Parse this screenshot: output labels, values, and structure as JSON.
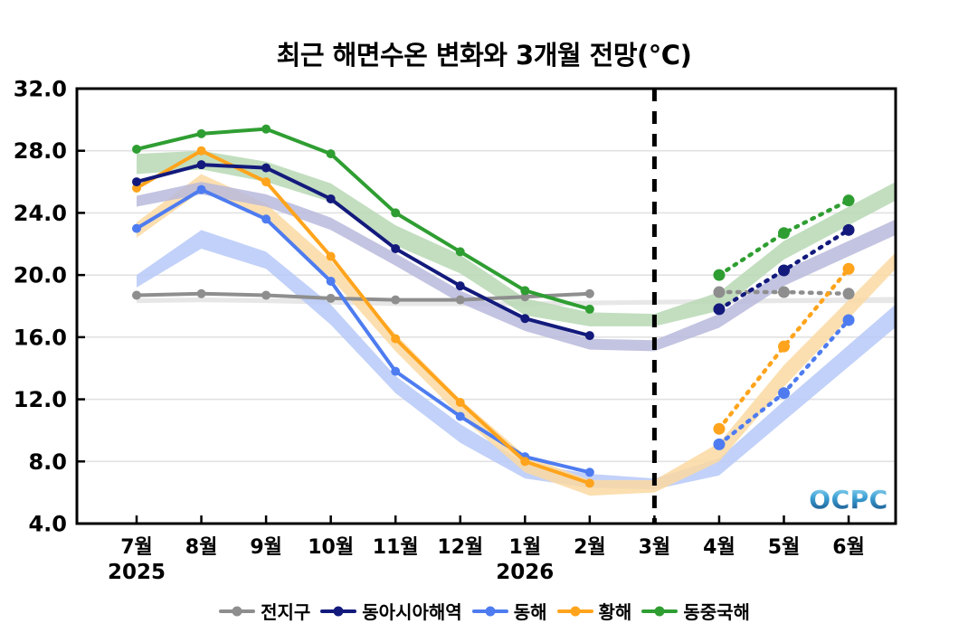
{
  "title": "최근 해면수온 변화와 3개월 전망(°C)",
  "logo_text": "OCPC",
  "chart_data": {
    "type": "line",
    "x_labels": [
      "7월",
      "8월",
      "9월",
      "10월",
      "11월",
      "12월",
      "1월",
      "2월",
      "3월",
      "4월",
      "5월",
      "6월"
    ],
    "year_labels": [
      {
        "label": "2025",
        "month_index": 0
      },
      {
        "label": "2026",
        "month_index": 6
      }
    ],
    "ylim": [
      4.0,
      32.0
    ],
    "yticks": [
      "4.0",
      "8.0",
      "12.0",
      "16.0",
      "20.0",
      "24.0",
      "28.0",
      "32.0"
    ],
    "ytick_values": [
      4,
      8,
      12,
      16,
      20,
      24,
      28,
      32
    ],
    "observed_months": [
      "7월",
      "8월",
      "9월",
      "10월",
      "11월",
      "12월",
      "1월",
      "2월"
    ],
    "forecast_months": [
      "4월",
      "5월",
      "6월"
    ],
    "forecast_divider_month": "3월",
    "forecast_divider_index": 8,
    "grid": "horizontal-only",
    "legend_position": "bottom-center",
    "series": [
      {
        "name": "전지구",
        "color": "#8e8e8e",
        "band_color": "#e3e3e3",
        "observed": [
          18.7,
          18.8,
          18.7,
          18.5,
          18.4,
          18.4,
          18.6,
          18.8
        ],
        "forecast": [
          18.9,
          18.9,
          18.8
        ],
        "band": [
          [
            18.2,
            18.5
          ],
          [
            18.25,
            18.55
          ],
          [
            18.2,
            18.5
          ],
          [
            18.1,
            18.45
          ],
          [
            18.0,
            18.35
          ],
          [
            18.0,
            18.3
          ],
          [
            18.0,
            18.3
          ],
          [
            18.05,
            18.35
          ],
          [
            18.1,
            18.4
          ],
          [
            18.15,
            18.45
          ],
          [
            18.2,
            18.5
          ],
          [
            18.2,
            18.55
          ]
        ]
      },
      {
        "name": "동해",
        "color": "#4e7cf0",
        "band_color": "#b7c9f8",
        "observed": [
          23.0,
          25.5,
          23.6,
          19.6,
          13.8,
          10.9,
          8.3,
          7.3
        ],
        "forecast": [
          9.1,
          12.4,
          17.1
        ],
        "band": [
          [
            19.2,
            20.0
          ],
          [
            21.7,
            22.9
          ],
          [
            20.4,
            21.5
          ],
          [
            16.8,
            18.1
          ],
          [
            12.4,
            13.5
          ],
          [
            9.2,
            10.4
          ],
          [
            6.9,
            7.9
          ],
          [
            6.3,
            7.2
          ],
          [
            6.2,
            6.9
          ],
          [
            7.1,
            8.2
          ],
          [
            10.6,
            11.9
          ],
          [
            14.1,
            15.5
          ]
        ]
      },
      {
        "name": "황해",
        "color": "#ffa41c",
        "band_color": "#fcd9a2",
        "observed": [
          25.6,
          28.0,
          26.0,
          21.2,
          15.9,
          11.8,
          8.0,
          6.6
        ],
        "forecast": [
          10.1,
          15.4,
          20.4
        ],
        "band": [
          [
            22.4,
            23.4
          ],
          [
            25.4,
            26.5
          ],
          [
            23.5,
            24.6
          ],
          [
            19.8,
            20.9
          ],
          [
            15.1,
            16.2
          ],
          [
            10.9,
            12.0
          ],
          [
            7.3,
            8.4
          ],
          [
            5.8,
            6.8
          ],
          [
            6.0,
            6.8
          ],
          [
            8.0,
            9.2
          ],
          [
            12.8,
            14.2
          ],
          [
            17.2,
            18.4
          ]
        ]
      },
      {
        "name": "동아시아해역",
        "color": "#131a7c",
        "band_color": "#b9badc",
        "observed": [
          26.0,
          27.1,
          26.9,
          24.9,
          21.7,
          19.3,
          17.2,
          16.1
        ],
        "forecast": [
          17.8,
          20.3,
          22.9
        ],
        "band": [
          [
            24.4,
            25.1
          ],
          [
            25.2,
            26.0
          ],
          [
            24.4,
            25.2
          ],
          [
            22.9,
            23.7
          ],
          [
            20.6,
            21.4
          ],
          [
            18.2,
            19.0
          ],
          [
            16.4,
            17.2
          ],
          [
            15.2,
            15.9
          ],
          [
            15.1,
            15.8
          ],
          [
            16.6,
            17.5
          ],
          [
            19.3,
            20.3
          ],
          [
            21.2,
            22.2
          ]
        ]
      },
      {
        "name": "동중국해",
        "color": "#2f9e32",
        "band_color": "#b7d8b4",
        "observed": [
          28.1,
          29.1,
          29.4,
          27.8,
          24.0,
          21.5,
          19.0,
          17.8
        ],
        "forecast": [
          20.0,
          22.7,
          24.8
        ],
        "band": [
          [
            26.5,
            27.8
          ],
          [
            26.8,
            28.0
          ],
          [
            26.0,
            27.3
          ],
          [
            24.7,
            25.9
          ],
          [
            21.9,
            23.2
          ],
          [
            20.1,
            21.3
          ],
          [
            17.4,
            18.5
          ],
          [
            16.7,
            17.6
          ],
          [
            16.7,
            17.5
          ],
          [
            17.7,
            18.9
          ],
          [
            21.0,
            22.2
          ],
          [
            23.2,
            24.4
          ]
        ]
      }
    ],
    "legend_order": [
      "전지구",
      "동아시아해역",
      "동해",
      "황해",
      "동중국해"
    ]
  }
}
